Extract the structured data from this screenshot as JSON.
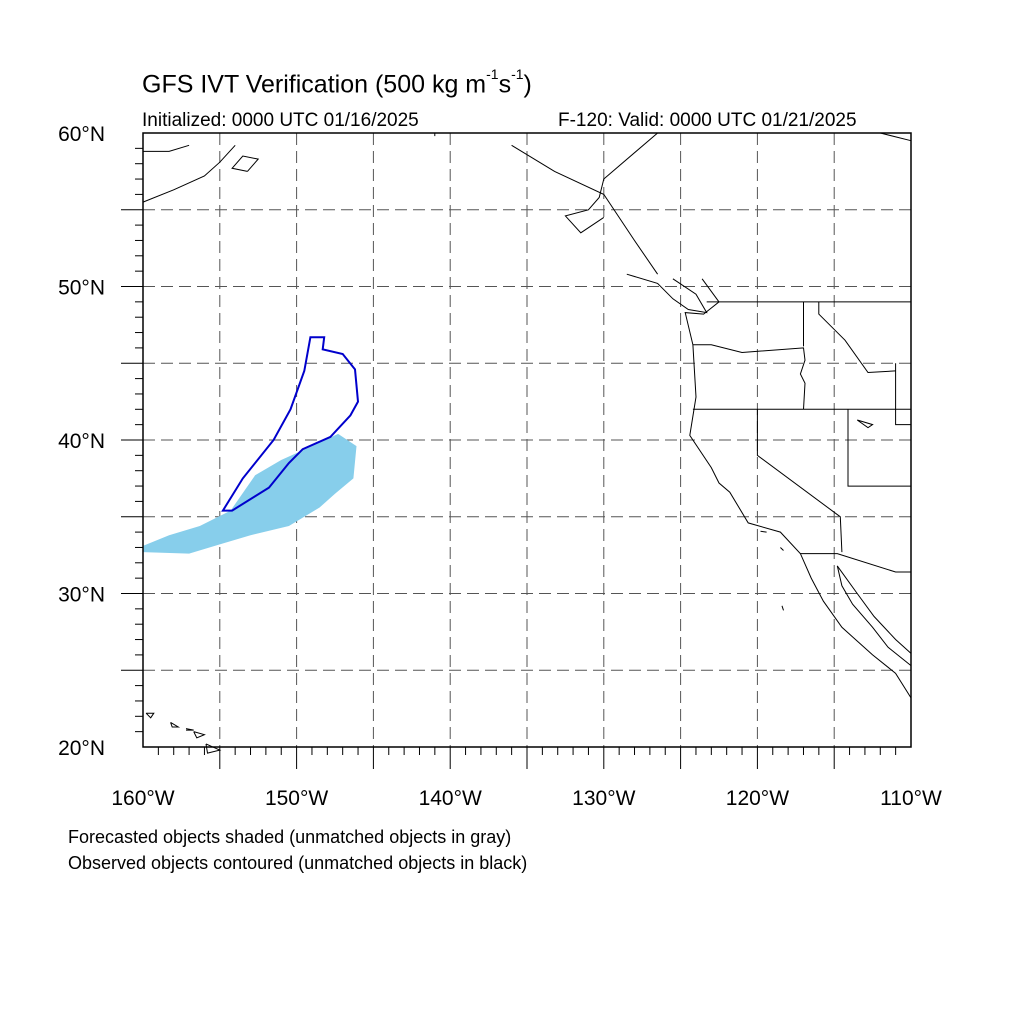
{
  "header": {
    "title_main": "GFS IVT Verification (500 kg m",
    "title_sup1": "-1",
    "title_mid": "s",
    "title_sup2": "-1",
    "title_end": ")",
    "initialized": "Initialized: 0000 UTC 01/16/2025",
    "valid": "F-120: Valid: 0000 UTC 01/21/2025"
  },
  "map": {
    "lon_range": [
      -160,
      -110
    ],
    "lat_range": [
      20,
      60
    ],
    "lat_labels": [
      {
        "value": 60,
        "text": "60°N"
      },
      {
        "value": 50,
        "text": "50°N"
      },
      {
        "value": 40,
        "text": "40°N"
      },
      {
        "value": 30,
        "text": "30°N"
      },
      {
        "value": 20,
        "text": "20°N"
      }
    ],
    "lon_labels": [
      {
        "value": -160,
        "text": "160°W"
      },
      {
        "value": -150,
        "text": "150°W"
      },
      {
        "value": -140,
        "text": "140°W"
      },
      {
        "value": -130,
        "text": "130°W"
      },
      {
        "value": -120,
        "text": "120°W"
      },
      {
        "value": -110,
        "text": "110°W"
      }
    ],
    "grid_lons": [
      -155,
      -150,
      -145,
      -140,
      -135,
      -130,
      -125,
      -120,
      -115
    ],
    "grid_lats": [
      25,
      30,
      35,
      40,
      45,
      50,
      55
    ],
    "grid": true,
    "colors": {
      "forecast_fill": "#87ceeb",
      "observed_contour": "#0000cc",
      "coastline": "#000000",
      "grid": "#555555"
    },
    "forecast_object": {
      "description_color": "light-blue",
      "polygon": [
        [
          -160,
          32.7
        ],
        [
          -157,
          32.6
        ],
        [
          -155,
          33.2
        ],
        [
          -153,
          33.8
        ],
        [
          -150.5,
          34.4
        ],
        [
          -148.5,
          35.6
        ],
        [
          -147.5,
          36.5
        ],
        [
          -146.3,
          37.5
        ],
        [
          -146.1,
          39.6
        ],
        [
          -147.3,
          40.4
        ],
        [
          -149,
          39.6
        ],
        [
          -151,
          38.7
        ],
        [
          -152.7,
          37.7
        ],
        [
          -154.3,
          35.4
        ],
        [
          -156.3,
          34.4
        ],
        [
          -158.3,
          33.8
        ],
        [
          -160,
          33.1
        ]
      ]
    },
    "observed_object": {
      "polygon": [
        [
          -154.8,
          35.4
        ],
        [
          -153.5,
          37.5
        ],
        [
          -151.5,
          40.0
        ],
        [
          -150.4,
          42.0
        ],
        [
          -149.5,
          44.5
        ],
        [
          -149.1,
          46.7
        ],
        [
          -148.2,
          46.7
        ],
        [
          -148.3,
          45.9
        ],
        [
          -147.0,
          45.6
        ],
        [
          -146.2,
          44.6
        ],
        [
          -146.0,
          42.5
        ],
        [
          -146.5,
          41.6
        ],
        [
          -147.8,
          40.2
        ],
        [
          -149.6,
          39.4
        ],
        [
          -150.5,
          38.5
        ],
        [
          -151.8,
          36.9
        ],
        [
          -154.2,
          35.4
        ],
        [
          -154.8,
          35.4
        ]
      ]
    },
    "coastlines": [
      [
        [
          -126.5,
          60
        ],
        [
          -130,
          57
        ],
        [
          -130.3,
          55.8
        ],
        [
          -131,
          55
        ],
        [
          -132.5,
          54.6
        ],
        [
          -131.5,
          53.5
        ],
        [
          -130,
          54.5
        ]
      ],
      [
        [
          -136,
          59.2
        ],
        [
          -133.2,
          57.5
        ],
        [
          -130,
          56
        ],
        [
          -128,
          53
        ],
        [
          -126.5,
          50.8
        ]
      ],
      [
        [
          -123.6,
          50.5
        ],
        [
          -122.5,
          49
        ],
        [
          -123.5,
          48.2
        ],
        [
          -124.7,
          48.3
        ],
        [
          -124.2,
          46.2
        ],
        [
          -124,
          42.8
        ],
        [
          -124.4,
          40.3
        ],
        [
          -123,
          38.2
        ],
        [
          -122.5,
          37.2
        ],
        [
          -121.8,
          36.6
        ],
        [
          -120.6,
          34.6
        ],
        [
          -118.5,
          34
        ],
        [
          -117.2,
          32.6
        ],
        [
          -116.5,
          31
        ],
        [
          -115.7,
          29.5
        ],
        [
          -114.5,
          27.8
        ],
        [
          -112.5,
          26
        ],
        [
          -111,
          24.8
        ],
        [
          -110,
          23.2
        ]
      ],
      [
        [
          -114.8,
          31.8
        ],
        [
          -114.5,
          30.5
        ],
        [
          -113.8,
          29.3
        ],
        [
          -112.5,
          27.8
        ],
        [
          -111.5,
          26.5
        ],
        [
          -110,
          25.3
        ]
      ],
      [
        [
          -114.8,
          31.8
        ],
        [
          -113.5,
          30
        ],
        [
          -112.4,
          28.5
        ],
        [
          -111,
          27
        ],
        [
          -110,
          26.1
        ]
      ],
      [
        [
          -128.5,
          50.8
        ],
        [
          -126.5,
          50.2
        ],
        [
          -125.5,
          49.2
        ],
        [
          -124.5,
          48.5
        ],
        [
          -123.3,
          48.3
        ],
        [
          -124,
          49.5
        ],
        [
          -125.5,
          50.5
        ]
      ],
      [
        [
          -160,
          55.5
        ],
        [
          -158,
          56.3
        ],
        [
          -156,
          57.2
        ],
        [
          -155,
          58.1
        ],
        [
          -154,
          59.2
        ]
      ],
      [
        [
          -153.2,
          57.5
        ],
        [
          -152.5,
          58.3
        ],
        [
          -153.5,
          58.5
        ],
        [
          -154.2,
          57.7
        ],
        [
          -153.2,
          57.5
        ]
      ],
      [
        [
          -160,
          58.8
        ],
        [
          -158.3,
          58.8
        ],
        [
          -157,
          59.2
        ]
      ],
      [
        [
          -112,
          60
        ],
        [
          -110,
          59.5
        ]
      ]
    ],
    "borders": [
      [
        [
          -141,
          60
        ],
        [
          -141,
          59.8
        ]
      ],
      [
        [
          -123.3,
          49
        ],
        [
          -110,
          49
        ]
      ],
      [
        [
          -124.2,
          46.2
        ],
        [
          -123,
          46.2
        ],
        [
          -121,
          45.7
        ],
        [
          -117,
          46
        ],
        [
          -116.9,
          45.2
        ],
        [
          -117.2,
          44.3
        ],
        [
          -116.9,
          43.7
        ],
        [
          -117,
          42
        ]
      ],
      [
        [
          -124.2,
          42
        ],
        [
          -110,
          42
        ]
      ],
      [
        [
          -120,
          42
        ],
        [
          -120,
          39
        ],
        [
          -114.6,
          35
        ],
        [
          -114.5,
          32.7
        ]
      ],
      [
        [
          -117.2,
          32.6
        ],
        [
          -114.8,
          32.6
        ],
        [
          -111,
          31.4
        ],
        [
          -110,
          31.4
        ]
      ],
      [
        [
          -117,
          49
        ],
        [
          -117,
          46.1
        ]
      ],
      [
        [
          -116,
          49
        ],
        [
          -116,
          48.2
        ],
        [
          -114.3,
          46.5
        ],
        [
          -112.8,
          44.4
        ],
        [
          -111,
          44.5
        ]
      ],
      [
        [
          -114.1,
          42
        ],
        [
          -114.1,
          37
        ],
        [
          -110,
          37
        ]
      ],
      [
        [
          -111,
          45
        ],
        [
          -111,
          41
        ],
        [
          -110,
          41
        ]
      ]
    ],
    "islands": [
      [
        [
          -159.8,
          22.2
        ],
        [
          -159.3,
          22.2
        ],
        [
          -159.5,
          21.9
        ],
        [
          -159.8,
          22.2
        ]
      ],
      [
        [
          -158.2,
          21.6
        ],
        [
          -157.7,
          21.3
        ],
        [
          -158.1,
          21.3
        ],
        [
          -158.2,
          21.6
        ]
      ],
      [
        [
          -157.2,
          21.2
        ],
        [
          -156.7,
          21.1
        ],
        [
          -157.2,
          21.1
        ]
      ],
      [
        [
          -156.7,
          21.0
        ],
        [
          -156.0,
          20.8
        ],
        [
          -156.5,
          20.6
        ],
        [
          -156.7,
          21.0
        ]
      ],
      [
        [
          -155.9,
          20.2
        ],
        [
          -155.0,
          19.8
        ],
        [
          -155.8,
          19.6
        ],
        [
          -155.9,
          20.2
        ]
      ],
      [
        [
          -118.5,
          33.0
        ],
        [
          -118.3,
          32.8
        ]
      ],
      [
        [
          -119.8,
          34.05
        ],
        [
          -119.4,
          34.0
        ]
      ],
      [
        [
          -118.4,
          29.2
        ],
        [
          -118.3,
          28.9
        ]
      ],
      [
        [
          -113.5,
          41.3
        ],
        [
          -112.5,
          41.0
        ],
        [
          -112.8,
          40.8
        ],
        [
          -113.5,
          41.3
        ]
      ]
    ]
  },
  "legend": {
    "line1": "Forecasted objects shaded (unmatched objects in gray)",
    "line2": "Observed objects contoured (unmatched objects in black)"
  }
}
